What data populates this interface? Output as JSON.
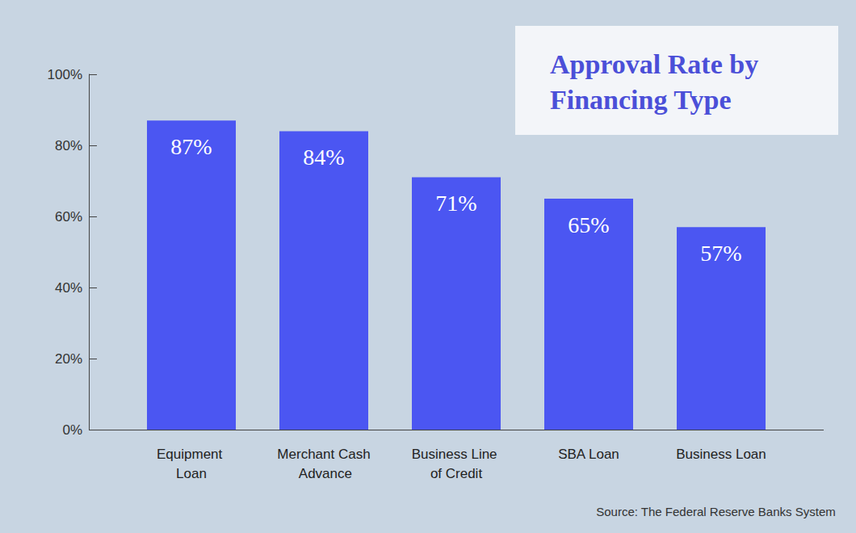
{
  "chart_data": {
    "type": "bar",
    "title": "Approval Rate by Financing Type",
    "source": "Source: The Federal Reserve Banks System",
    "categories": [
      "Equipment Loan",
      "Merchant Cash Advance",
      "Business Line of Credit",
      "SBA Loan",
      "Business Loan"
    ],
    "values": [
      87,
      84,
      71,
      65,
      57
    ],
    "value_labels": [
      "87%",
      "84%",
      "71%",
      "65%",
      "57%"
    ],
    "color": "#4b56f2",
    "ylim": [
      0,
      100
    ],
    "yticks": [
      {
        "value": 0,
        "label": "0%"
      },
      {
        "value": 20,
        "label": "20%"
      },
      {
        "value": 40,
        "label": "40%"
      },
      {
        "value": 60,
        "label": "60%"
      },
      {
        "value": 80,
        "label": "80%"
      },
      {
        "value": 100,
        "label": "100%"
      }
    ],
    "grid": false,
    "data_labels": true
  }
}
